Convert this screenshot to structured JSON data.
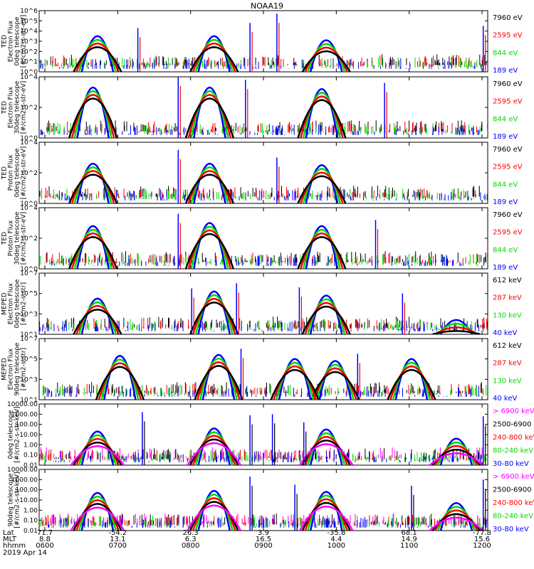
{
  "title": "NOAA19",
  "colors": {
    "black": "#000000",
    "red": "#ff0000",
    "green": "#00dd00",
    "blue": "#0000ff",
    "magenta": "#ff00ff"
  },
  "bottom_axis": {
    "row_labels": [
      "Lat",
      "MLT",
      "hhmm"
    ],
    "date": "2019 Apr 14",
    "columns": [
      {
        "lat": "71.7",
        "mlt": "8.8",
        "hhmm": "0600"
      },
      {
        "lat": "-54.2",
        "mlt": "13.1",
        "hhmm": "0700"
      },
      {
        "lat": "26.3",
        "mlt": "6.3",
        "hhmm": "0800"
      },
      {
        "lat": "3.9",
        "mlt": "16.5",
        "hhmm": "0900"
      },
      {
        "lat": "-35.8",
        "mlt": "4.4",
        "hhmm": "1000"
      },
      {
        "lat": "68.1",
        "mlt": "14.9",
        "hhmm": "1100"
      },
      {
        "lat": "-77.8",
        "mlt": "15.6",
        "hhmm": "1200"
      }
    ]
  },
  "chart_data": [
    {
      "type": "scatter",
      "log_y": true,
      "ylim": [
        1,
        1000000
      ],
      "ylabel_lines": [
        "TED",
        "Electron Flux",
        "0deg telescope",
        "[#/cm2-s-str-eV]"
      ],
      "yticks": [
        "10^0",
        "10^1",
        "10^2",
        "10^3",
        "10^4",
        "10^5",
        "10^6"
      ],
      "series": [
        {
          "name": "7960 eV",
          "color": "#000000"
        },
        {
          "name": "2595 eV",
          "color": "#ff0000"
        },
        {
          "name": "844 eV",
          "color": "#00dd00"
        },
        {
          "name": "189 eV",
          "color": "#0000ff"
        }
      ],
      "passes": [
        {
          "x": 0.13,
          "peak": 3.5
        },
        {
          "x": 0.39,
          "peak": 3.5
        },
        {
          "x": 0.64,
          "peak": 3.1
        }
      ],
      "spikes": [
        {
          "x": 0.22,
          "v": 4.3
        },
        {
          "x": 0.47,
          "v": 4.8
        },
        {
          "x": 0.53,
          "v": 5.7
        },
        {
          "x": 0.99,
          "v": 4.5
        }
      ]
    },
    {
      "type": "scatter",
      "log_y": true,
      "ylim": [
        1,
        10000
      ],
      "ylabel_lines": [
        "TED",
        "Electron Flux",
        "30deg telescope",
        "[#/cm2-s-str-eV]"
      ],
      "yticks": [
        "10^0",
        "10^2",
        "10^4"
      ],
      "series": [
        {
          "name": "7960 eV",
          "color": "#000000"
        },
        {
          "name": "2595 eV",
          "color": "#ff0000"
        },
        {
          "name": "844 eV",
          "color": "#00dd00"
        },
        {
          "name": "189 eV",
          "color": "#0000ff"
        }
      ],
      "passes": [
        {
          "x": 0.12,
          "peak": 3.3
        },
        {
          "x": 0.38,
          "peak": 3.3
        },
        {
          "x": 0.63,
          "peak": 3.2
        }
      ],
      "spikes": [
        {
          "x": 0.31,
          "v": 4.0
        },
        {
          "x": 0.46,
          "v": 3.8
        },
        {
          "x": 0.77,
          "v": 3.6
        }
      ]
    },
    {
      "type": "scatter",
      "log_y": true,
      "ylim": [
        1,
        10000
      ],
      "ylabel_lines": [
        "TED",
        "Proton Flux",
        "0deg telescope",
        "[#/cm2-s-str-eV]"
      ],
      "yticks": [
        "10^0",
        "10^2",
        "10^4"
      ],
      "series": [
        {
          "name": "7960 eV",
          "color": "#000000"
        },
        {
          "name": "2595 eV",
          "color": "#ff0000"
        },
        {
          "name": "844 eV",
          "color": "#00dd00"
        },
        {
          "name": "189 eV",
          "color": "#0000ff"
        }
      ],
      "passes": [
        {
          "x": 0.12,
          "peak": 2.6
        },
        {
          "x": 0.38,
          "peak": 2.6
        },
        {
          "x": 0.63,
          "peak": 2.5
        }
      ],
      "spikes": [
        {
          "x": 0.31,
          "v": 3.5
        },
        {
          "x": 0.53,
          "v": 3.0
        }
      ]
    },
    {
      "type": "scatter",
      "log_y": true,
      "ylim": [
        1,
        10000
      ],
      "ylabel_lines": [
        "TED",
        "Proton Flux",
        "30deg telescope",
        "[#/cm2-s-str-eV]"
      ],
      "yticks": [
        "10^0",
        "10^2",
        "10^4"
      ],
      "series": [
        {
          "name": "7960 eV",
          "color": "#000000"
        },
        {
          "name": "2595 eV",
          "color": "#ff0000"
        },
        {
          "name": "844 eV",
          "color": "#00dd00"
        },
        {
          "name": "189 eV",
          "color": "#0000ff"
        }
      ],
      "passes": [
        {
          "x": 0.12,
          "peak": 2.8
        },
        {
          "x": 0.38,
          "peak": 3.0
        },
        {
          "x": 0.63,
          "peak": 2.8
        }
      ],
      "spikes": [
        {
          "x": 0.31,
          "v": 3.6
        },
        {
          "x": 0.75,
          "v": 3.2
        }
      ]
    },
    {
      "type": "scatter",
      "log_y": true,
      "ylim": [
        10,
        10000000
      ],
      "ylabel_lines": [
        "MEPED",
        "Electron Flux",
        "0deg telescope",
        "[#/cm2-s-str]"
      ],
      "yticks": [
        "10^1",
        "10^3",
        "10^5",
        "10^7"
      ],
      "series": [
        {
          "name": "612 keV",
          "color": "#000000"
        },
        {
          "name": "287 keV",
          "color": "#ff0000"
        },
        {
          "name": "130 keV",
          "color": "#00dd00"
        },
        {
          "name": "40 keV",
          "color": "#0000ff"
        }
      ],
      "passes": [
        {
          "x": 0.13,
          "peak": 4.5
        },
        {
          "x": 0.39,
          "peak": 5.2
        },
        {
          "x": 0.64,
          "peak": 4.8
        },
        {
          "x": 0.93,
          "peak": 2.4
        }
      ],
      "spikes": [
        {
          "x": 0.34,
          "v": 5.5
        },
        {
          "x": 0.44,
          "v": 6.0
        },
        {
          "x": 0.58,
          "v": 5.6
        },
        {
          "x": 0.81,
          "v": 5.0
        }
      ]
    },
    {
      "type": "scatter",
      "log_y": true,
      "ylim": [
        10,
        10000000
      ],
      "ylabel_lines": [
        "MEPED",
        "Electron Flux",
        "90deg telescope",
        "[#/cm2-s-str]"
      ],
      "yticks": [
        "10^1",
        "10^3",
        "10^5",
        "10^7"
      ],
      "series": [
        {
          "name": "612 keV",
          "color": "#000000"
        },
        {
          "name": "287 keV",
          "color": "#ff0000"
        },
        {
          "name": "130 keV",
          "color": "#00dd00"
        },
        {
          "name": "40 keV",
          "color": "#0000ff"
        }
      ],
      "passes": [
        {
          "x": 0.18,
          "peak": 5.3
        },
        {
          "x": 0.4,
          "peak": 5.4
        },
        {
          "x": 0.66,
          "peak": 4.8
        },
        {
          "x": 0.57,
          "peak": 5.0
        },
        {
          "x": 0.83,
          "peak": 5.0
        }
      ],
      "spikes": [
        {
          "x": 0.45,
          "v": 6.0
        },
        {
          "x": 0.71,
          "v": 5.5
        }
      ]
    },
    {
      "type": "scatter",
      "log_y": true,
      "ylim": [
        0.01,
        10000
      ],
      "ylabel_lines": [
        "0deg telescope",
        "[#/cm2-s-str-keV]"
      ],
      "yticks": [
        "0.01",
        "0.10",
        "1.00",
        "10.00",
        "100.00",
        "1000.00",
        "10000.00"
      ],
      "series": [
        {
          "name": "> 6900 keV",
          "color": "#ff00ff"
        },
        {
          "name": "2500-6900",
          "color": "#000000"
        },
        {
          "name": "240-800 keV",
          "color": "#ff0000"
        },
        {
          "name": "80-240 keV",
          "color": "#00dd00"
        },
        {
          "name": "30-80 keV",
          "color": "#0000ff"
        }
      ],
      "passes": [
        {
          "x": 0.13,
          "peak": 1.3
        },
        {
          "x": 0.39,
          "peak": 1.6
        },
        {
          "x": 0.64,
          "peak": 1.5
        },
        {
          "x": 0.93,
          "peak": 0.6
        }
      ],
      "spikes": [
        {
          "x": 0.23,
          "v": 3.2
        },
        {
          "x": 0.47,
          "v": 2.9
        },
        {
          "x": 0.52,
          "v": 3.0
        },
        {
          "x": 0.59,
          "v": 2.2
        },
        {
          "x": 0.99,
          "v": 2.8
        }
      ]
    },
    {
      "type": "scatter",
      "log_y": true,
      "ylim": [
        0.01,
        10000
      ],
      "ylabel_lines": [
        "90deg telescope",
        "[#/cm2-s-str-keV]"
      ],
      "yticks": [
        "0.01",
        "0.10",
        "1.00",
        "10.00",
        "100.00",
        "1000.00",
        "10000.00"
      ],
      "series": [
        {
          "name": "> 6900 keV",
          "color": "#ff00ff"
        },
        {
          "name": "2500-6900",
          "color": "#000000"
        },
        {
          "name": "240-800 keV",
          "color": "#ff0000"
        },
        {
          "name": "80-240 keV",
          "color": "#00dd00"
        },
        {
          "name": "30-80 keV",
          "color": "#0000ff"
        }
      ],
      "passes": [
        {
          "x": 0.13,
          "peak": 1.7
        },
        {
          "x": 0.39,
          "peak": 1.9
        },
        {
          "x": 0.64,
          "peak": 1.8
        },
        {
          "x": 0.93,
          "peak": 0.7
        }
      ],
      "spikes": [
        {
          "x": 0.47,
          "v": 3.3
        },
        {
          "x": 0.57,
          "v": 2.5
        },
        {
          "x": 0.83,
          "v": 2.4
        },
        {
          "x": 0.99,
          "v": 3.0
        }
      ]
    }
  ]
}
